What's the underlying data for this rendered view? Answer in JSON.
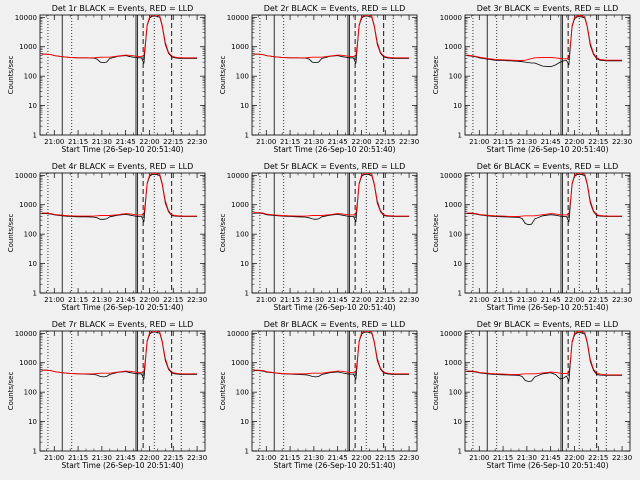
{
  "chart_data": {
    "type": "line",
    "layout": "3x3 grid",
    "common": {
      "xlabel": "Start Time (26-Sep-10 20:51:40)",
      "ylabel": "Counts/sec",
      "x_ticks": [
        "21:00",
        "21:15",
        "21:30",
        "21:45",
        "22:00",
        "22:15",
        "22:30"
      ],
      "x_tick_minutes": [
        0,
        15,
        30,
        45,
        60,
        75,
        90
      ],
      "xlim_minutes": [
        -9,
        95
      ],
      "y_scale": "log",
      "ylim": [
        1,
        12000
      ],
      "y_ticks": [
        "1",
        "10",
        "100",
        "1000",
        "10000"
      ],
      "y_tick_values": [
        1,
        10,
        100,
        1000,
        10000
      ],
      "grid": false,
      "colors": {
        "events": "#000000",
        "lld": "#ff0000",
        "background": "#f0f0f0",
        "axes": "#000000"
      },
      "vertical_lines": {
        "dotted_minutes": [
          -4,
          11,
          63,
          80
        ],
        "solid_minutes": [
          5,
          51.5,
          52.5
        ],
        "dashed_minutes": [
          56,
          74
        ]
      },
      "x_minutes": [
        -8,
        -5,
        -2,
        0,
        5,
        10,
        15,
        20,
        25,
        27,
        29,
        31,
        33,
        35,
        40,
        45,
        48,
        51,
        53,
        55,
        56.5,
        57.5,
        58.5,
        60,
        62,
        64,
        66.5,
        68,
        70,
        72,
        74,
        76,
        80,
        85,
        90
      ]
    },
    "panels": [
      {
        "title": "Det 1r BLACK = Events, RED = LLD",
        "series": [
          {
            "name": "Events",
            "color": "#000000",
            "values": [
              560,
              560,
              540,
              500,
              460,
              430,
              420,
              420,
              410,
              380,
              300,
              290,
              300,
              400,
              470,
              500,
              460,
              430,
              420,
              420,
              270,
              1200,
              5000,
              9500,
              11000,
              11000,
              10000,
              5000,
              1200,
              600,
              450,
              420,
              400,
              400,
              400
            ]
          },
          {
            "name": "LLD",
            "color": "#ff0000",
            "values": [
              560,
              560,
              540,
              500,
              460,
              430,
              420,
              420,
              420,
              430,
              440,
              440,
              440,
              440,
              480,
              520,
              510,
              480,
              470,
              470,
              500,
              1400,
              5500,
              10000,
              12000,
              12000,
              11000,
              5500,
              1400,
              650,
              480,
              440,
              420,
              420,
              420
            ]
          }
        ]
      },
      {
        "title": "Det 2r BLACK = Events, RED = LLD",
        "series": [
          {
            "name": "Events",
            "color": "#000000",
            "values": [
              560,
              560,
              540,
              500,
              460,
              430,
              420,
              420,
              410,
              380,
              300,
              290,
              300,
              400,
              470,
              500,
              460,
              430,
              420,
              420,
              270,
              1200,
              5000,
              9500,
              11000,
              11000,
              10000,
              5000,
              1200,
              600,
              450,
              420,
              400,
              400,
              400
            ]
          },
          {
            "name": "LLD",
            "color": "#ff0000",
            "values": [
              560,
              560,
              540,
              500,
              460,
              430,
              420,
              420,
              420,
              430,
              440,
              440,
              440,
              440,
              480,
              520,
              510,
              480,
              470,
              470,
              500,
              1400,
              5500,
              10000,
              12000,
              12000,
              11000,
              5500,
              1400,
              650,
              480,
              440,
              420,
              420,
              420
            ]
          }
        ]
      },
      {
        "title": "Det 3r BLACK = Events, RED = LLD",
        "series": [
          {
            "name": "Events",
            "color": "#000000",
            "values": [
              500,
              480,
              450,
              420,
              380,
              350,
              340,
              330,
              320,
              310,
              300,
              290,
              280,
              280,
              220,
              210,
              240,
              300,
              330,
              340,
              250,
              1100,
              4800,
              9000,
              10500,
              10500,
              9500,
              4800,
              1100,
              550,
              400,
              350,
              330,
              330,
              330
            ]
          },
          {
            "name": "LLD",
            "color": "#ff0000",
            "values": [
              520,
              500,
              470,
              440,
              400,
              370,
              360,
              350,
              340,
              340,
              350,
              370,
              400,
              420,
              430,
              430,
              420,
              400,
              390,
              390,
              420,
              1300,
              5200,
              9800,
              11500,
              11500,
              10500,
              5200,
              1300,
              600,
              420,
              370,
              350,
              350,
              350
            ]
          }
        ]
      },
      {
        "title": "Det 4r BLACK = Events, RED = LLD",
        "series": [
          {
            "name": "Events",
            "color": "#000000",
            "values": [
              500,
              500,
              480,
              450,
              420,
              400,
              390,
              390,
              380,
              360,
              320,
              320,
              330,
              390,
              440,
              470,
              440,
              410,
              400,
              400,
              260,
              1150,
              4900,
              9300,
              10800,
              10800,
              9800,
              4900,
              1150,
              580,
              430,
              410,
              400,
              400,
              400
            ]
          },
          {
            "name": "LLD",
            "color": "#ff0000",
            "values": [
              520,
              520,
              500,
              470,
              440,
              420,
              410,
              410,
              410,
              420,
              430,
              430,
              430,
              430,
              460,
              500,
              490,
              460,
              450,
              450,
              480,
              1350,
              5400,
              9900,
              11800,
              11800,
              10800,
              5400,
              1350,
              630,
              460,
              430,
              410,
              410,
              410
            ]
          }
        ]
      },
      {
        "title": "Det 5r BLACK = Events, RED = LLD",
        "series": [
          {
            "name": "Events",
            "color": "#000000",
            "values": [
              520,
              520,
              500,
              460,
              430,
              410,
              400,
              390,
              380,
              360,
              330,
              320,
              330,
              390,
              440,
              470,
              440,
              410,
              400,
              400,
              260,
              1150,
              4900,
              9300,
              10800,
              10800,
              9800,
              4900,
              1150,
              580,
              430,
              410,
              400,
              400,
              400
            ]
          },
          {
            "name": "LLD",
            "color": "#ff0000",
            "values": [
              540,
              540,
              520,
              480,
              450,
              430,
              420,
              410,
              410,
              420,
              430,
              430,
              430,
              430,
              460,
              500,
              490,
              460,
              450,
              450,
              480,
              1350,
              5400,
              9900,
              11800,
              11800,
              10800,
              5400,
              1350,
              630,
              460,
              430,
              410,
              410,
              410
            ]
          }
        ]
      },
      {
        "title": "Det 6r BLACK = Events, RED = LLD",
        "series": [
          {
            "name": "Events",
            "color": "#000000",
            "values": [
              500,
              500,
              480,
              450,
              420,
              400,
              390,
              380,
              370,
              340,
              230,
              210,
              220,
              330,
              420,
              460,
              440,
              410,
              400,
              400,
              260,
              1150,
              4900,
              9300,
              10800,
              10800,
              9800,
              4900,
              1150,
              580,
              430,
              410,
              400,
              400,
              400
            ]
          },
          {
            "name": "LLD",
            "color": "#ff0000",
            "values": [
              520,
              520,
              500,
              470,
              440,
              420,
              410,
              400,
              400,
              410,
              420,
              420,
              420,
              420,
              460,
              500,
              490,
              460,
              450,
              450,
              480,
              1350,
              5400,
              9900,
              11800,
              11800,
              10800,
              5400,
              1350,
              630,
              460,
              430,
              410,
              410,
              410
            ]
          }
        ]
      },
      {
        "title": "Det 7r BLACK = Events, RED = LLD",
        "series": [
          {
            "name": "Events",
            "color": "#000000",
            "values": [
              560,
              560,
              540,
              500,
              460,
              430,
              420,
              410,
              400,
              380,
              340,
              330,
              340,
              400,
              470,
              500,
              460,
              430,
              420,
              420,
              270,
              1200,
              5000,
              9500,
              11000,
              11000,
              10000,
              5000,
              1200,
              600,
              450,
              420,
              400,
              400,
              400
            ]
          },
          {
            "name": "LLD",
            "color": "#ff0000",
            "values": [
              560,
              560,
              540,
              500,
              460,
              430,
              420,
              420,
              420,
              430,
              440,
              440,
              440,
              440,
              480,
              520,
              510,
              480,
              470,
              470,
              500,
              1400,
              5500,
              10000,
              12000,
              12000,
              11000,
              5500,
              1400,
              650,
              480,
              440,
              420,
              420,
              420
            ]
          }
        ]
      },
      {
        "title": "Det 8r BLACK = Events, RED = LLD",
        "series": [
          {
            "name": "Events",
            "color": "#000000",
            "values": [
              540,
              540,
              520,
              480,
              450,
              420,
              410,
              400,
              390,
              370,
              340,
              330,
              340,
              400,
              460,
              490,
              450,
              420,
              410,
              410,
              270,
              1200,
              5000,
              9500,
              11000,
              11000,
              10000,
              5000,
              1200,
              600,
              450,
              420,
              400,
              400,
              400
            ]
          },
          {
            "name": "LLD",
            "color": "#ff0000",
            "values": [
              560,
              560,
              540,
              500,
              460,
              430,
              420,
              420,
              420,
              430,
              440,
              440,
              440,
              440,
              480,
              520,
              510,
              480,
              470,
              470,
              500,
              1400,
              5500,
              10000,
              12000,
              12000,
              11000,
              5500,
              1400,
              650,
              480,
              440,
              420,
              420,
              420
            ]
          }
        ]
      },
      {
        "title": "Det 9r BLACK = Events, RED = LLD",
        "series": [
          {
            "name": "Events",
            "color": "#000000",
            "values": [
              500,
              500,
              480,
              450,
              420,
              400,
              390,
              380,
              370,
              340,
              250,
              230,
              240,
              330,
              420,
              460,
              400,
              280,
              300,
              350,
              240,
              1100,
              4800,
              9000,
              10500,
              10500,
              9500,
              4800,
              1100,
              550,
              400,
              380,
              370,
              370,
              370
            ]
          },
          {
            "name": "LLD",
            "color": "#ff0000",
            "values": [
              520,
              520,
              500,
              470,
              440,
              420,
              410,
              400,
              400,
              410,
              420,
              420,
              420,
              420,
              450,
              480,
              470,
              440,
              430,
              430,
              460,
              1300,
              5300,
              9800,
              11600,
              11600,
              10600,
              5300,
              1300,
              610,
              440,
              410,
              390,
              390,
              390
            ]
          }
        ]
      }
    ]
  }
}
